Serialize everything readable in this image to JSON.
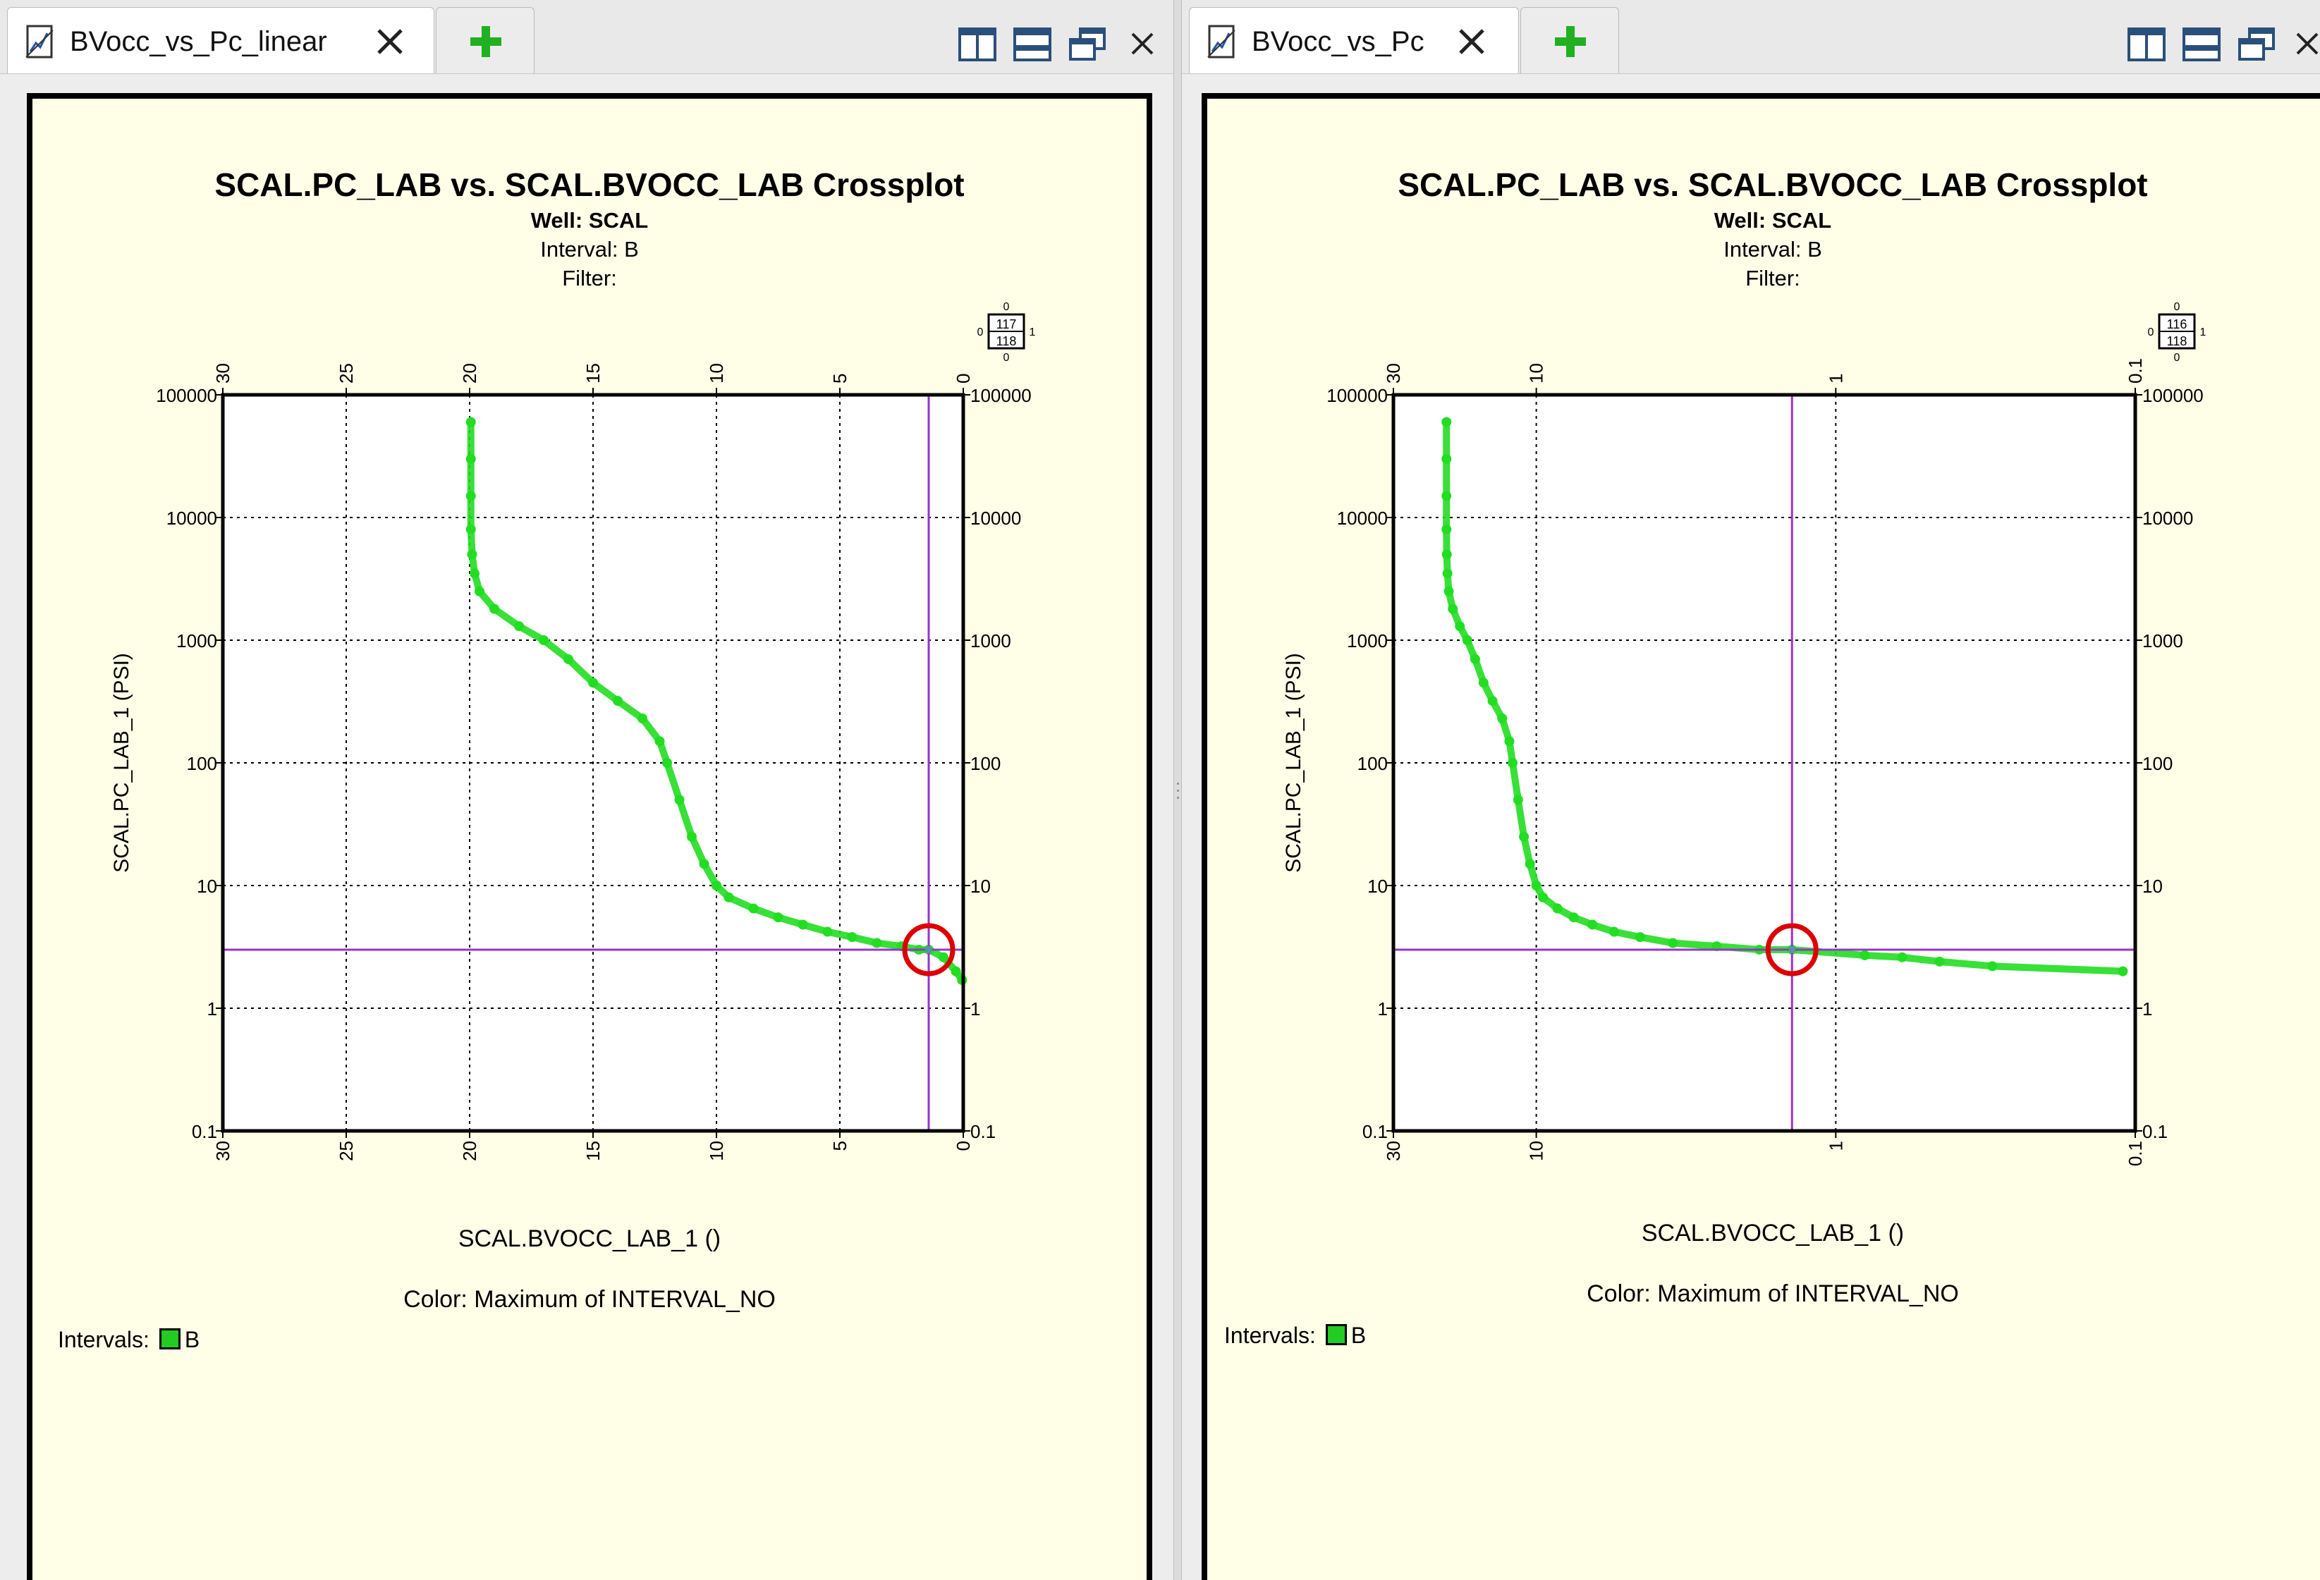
{
  "colors": {
    "points": "#22dd22",
    "crosshair": "#9933cc",
    "marker": "#dd0000",
    "plot_bg": "#ffffff",
    "panel_bg": "#ffffe8"
  },
  "icons": [
    "chart-doc-icon",
    "close-icon",
    "add-tab-icon",
    "tile-vertical-icon",
    "tile-horizontal-icon",
    "restore-icon",
    "close-icon"
  ],
  "left": {
    "tab_label": "BVocc_vs_Pc_linear",
    "plot": {
      "title": "SCAL.PC_LAB vs. SCAL.BVOCC_LAB Crossplot",
      "well_label": "Well:",
      "well_value": "SCAL",
      "interval_line": "Interval: B",
      "filter_line": "Filter:",
      "ylabel": "SCAL.PC_LAB_1 (PSI)",
      "xlabel": "SCAL.BVOCC_LAB_1 ()",
      "color_note": "Color: Maximum of INTERVAL_NO",
      "legend_label": "Intervals:",
      "legend_item": "B",
      "count_top": "117",
      "count_bottom": "118",
      "count_0": "0",
      "count_1": "1"
    }
  },
  "right": {
    "tab_label": "BVocc_vs_Pc",
    "plot": {
      "title": "SCAL.PC_LAB vs. SCAL.BVOCC_LAB Crossplot",
      "well_label": "Well:",
      "well_value": "SCAL",
      "interval_line": "Interval: B",
      "filter_line": "Filter:",
      "ylabel": "SCAL.PC_LAB_1 (PSI)",
      "xlabel": "SCAL.BVOCC_LAB_1 ()",
      "color_note": "Color: Maximum of INTERVAL_NO",
      "legend_label": "Intervals:",
      "legend_item": "B",
      "count_top": "116",
      "count_bottom": "118",
      "count_0": "0",
      "count_1": "1"
    }
  },
  "chart_data": [
    {
      "type": "scatter",
      "title": "SCAL.PC_LAB vs. SCAL.BVOCC_LAB Crossplot",
      "subtitle": [
        "Well: SCAL",
        "Interval: B",
        "Filter:"
      ],
      "xlabel": "SCAL.BVOCC_LAB_1 ()",
      "ylabel": "SCAL.PC_LAB_1 (PSI)",
      "x_scale": "linear",
      "x_reversed": true,
      "xlim": [
        30,
        0
      ],
      "y_scale": "log",
      "ylim": [
        0.1,
        100000
      ],
      "x_ticks": [
        "30",
        "25",
        "20",
        "15",
        "10",
        "5",
        "0"
      ],
      "y_ticks": [
        "100000",
        "10000",
        "1000",
        "100",
        "10",
        "1",
        "0.1"
      ],
      "grid": true,
      "legend": "bottom-left",
      "crosshair": {
        "x": 1.4,
        "y": 3.0
      },
      "series": [
        {
          "name": "B",
          "points": [
            [
              19.95,
              60000
            ],
            [
              19.95,
              30000
            ],
            [
              19.95,
              15000
            ],
            [
              19.95,
              8000
            ],
            [
              19.9,
              5000
            ],
            [
              19.8,
              3500
            ],
            [
              19.6,
              2500
            ],
            [
              19.0,
              1800
            ],
            [
              18.0,
              1300
            ],
            [
              17.0,
              1000
            ],
            [
              16.0,
              700
            ],
            [
              15.0,
              450
            ],
            [
              14.0,
              320
            ],
            [
              13.0,
              230
            ],
            [
              12.3,
              150
            ],
            [
              12.0,
              100
            ],
            [
              11.5,
              50
            ],
            [
              11.0,
              25
            ],
            [
              10.5,
              15
            ],
            [
              10.0,
              10
            ],
            [
              9.5,
              8
            ],
            [
              8.5,
              6.5
            ],
            [
              7.5,
              5.5
            ],
            [
              6.5,
              4.8
            ],
            [
              5.5,
              4.2
            ],
            [
              4.5,
              3.8
            ],
            [
              3.5,
              3.4
            ],
            [
              2.5,
              3.2
            ],
            [
              1.8,
              3.0
            ],
            [
              1.4,
              3.0
            ],
            [
              0.8,
              2.6
            ],
            [
              0.3,
              2.0
            ],
            [
              0.05,
              1.7
            ]
          ]
        }
      ]
    },
    {
      "type": "scatter",
      "title": "SCAL.PC_LAB vs. SCAL.BVOCC_LAB Crossplot",
      "subtitle": [
        "Well: SCAL",
        "Interval: B",
        "Filter:"
      ],
      "xlabel": "SCAL.BVOCC_LAB_1 ()",
      "ylabel": "SCAL.PC_LAB_1 (PSI)",
      "x_scale": "log",
      "x_reversed": true,
      "xlim": [
        30,
        0.1
      ],
      "y_scale": "log",
      "ylim": [
        0.1,
        100000
      ],
      "x_ticks": [
        "30",
        "10",
        "1",
        "0.1"
      ],
      "y_ticks": [
        "100000",
        "10000",
        "1000",
        "100",
        "10",
        "1",
        "0.1"
      ],
      "grid": true,
      "legend": "bottom-left",
      "crosshair": {
        "x": 1.4,
        "y": 3.0
      },
      "series": [
        {
          "name": "B",
          "points": [
            [
              19.95,
              60000
            ],
            [
              19.95,
              30000
            ],
            [
              19.95,
              15000
            ],
            [
              19.95,
              8000
            ],
            [
              19.9,
              5000
            ],
            [
              19.8,
              3500
            ],
            [
              19.6,
              2500
            ],
            [
              19.0,
              1800
            ],
            [
              18.0,
              1300
            ],
            [
              17.0,
              1000
            ],
            [
              16.0,
              700
            ],
            [
              15.0,
              450
            ],
            [
              14.0,
              320
            ],
            [
              13.0,
              230
            ],
            [
              12.3,
              150
            ],
            [
              12.0,
              100
            ],
            [
              11.5,
              50
            ],
            [
              11.0,
              25
            ],
            [
              10.5,
              15
            ],
            [
              10.0,
              10
            ],
            [
              9.5,
              8
            ],
            [
              8.5,
              6.5
            ],
            [
              7.5,
              5.5
            ],
            [
              6.5,
              4.8
            ],
            [
              5.5,
              4.2
            ],
            [
              4.5,
              3.8
            ],
            [
              3.5,
              3.4
            ],
            [
              2.5,
              3.2
            ],
            [
              1.8,
              3.0
            ],
            [
              1.4,
              3.0
            ],
            [
              0.8,
              2.7
            ],
            [
              0.6,
              2.6
            ],
            [
              0.45,
              2.4
            ],
            [
              0.3,
              2.2
            ],
            [
              0.11,
              2.0
            ]
          ]
        }
      ]
    }
  ]
}
